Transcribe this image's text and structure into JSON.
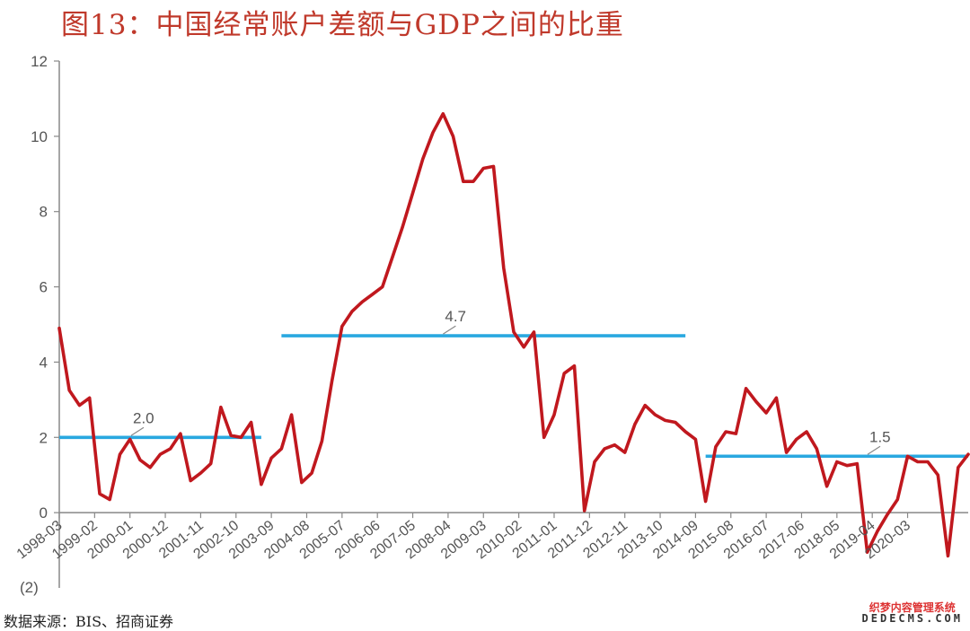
{
  "title": "图13：中国经常账户差额与GDP之间的比重",
  "source": "数据来源：BIS、招商证券",
  "watermark": {
    "cn": "织梦内容管理系统",
    "en": "DEDECMS.COM"
  },
  "colors": {
    "series": "#c0181e",
    "average": "#29a8e0",
    "title": "#c0392b"
  },
  "chart_data": {
    "type": "line",
    "ylim": [
      -2,
      12
    ],
    "yticks": [
      0,
      2,
      4,
      6,
      8,
      10,
      12
    ],
    "ytick_labels": [
      "0",
      "2",
      "4",
      "6",
      "8",
      "10",
      "12"
    ],
    "bottom_label": "(2)",
    "xtick_labels": [
      "1998-03",
      "1999-02",
      "2000-01",
      "2000-12",
      "2001-11",
      "2002-10",
      "2003-09",
      "2004-08",
      "2005-07",
      "2006-06",
      "2007-05",
      "2008-04",
      "2009-03",
      "2010-02",
      "2011-01",
      "2011-12",
      "2012-11",
      "2013-10",
      "2014-09",
      "2015-08",
      "2016-07",
      "2017-06",
      "2018-05",
      "2019-04",
      "2020-03"
    ],
    "xlim": [
      0,
      90
    ],
    "series": [
      {
        "x": [
          0,
          1,
          2,
          3,
          4,
          5,
          6,
          7,
          8,
          9,
          10,
          11,
          12,
          13,
          14,
          15,
          16,
          17,
          18,
          19,
          20,
          21,
          22,
          23,
          24,
          25,
          26,
          27,
          28,
          29,
          30,
          31,
          32,
          33,
          34,
          35,
          36,
          37,
          38,
          39,
          40,
          41,
          42,
          43,
          44,
          45,
          46,
          47,
          48,
          49,
          50,
          51,
          52,
          53,
          54,
          55,
          56,
          57,
          58,
          59,
          60,
          61,
          62,
          63,
          64,
          65,
          66,
          67,
          68,
          69,
          70,
          71,
          72,
          73,
          74,
          75,
          76,
          77,
          78,
          79,
          80,
          81,
          82,
          83,
          84,
          85,
          86,
          87,
          88,
          89,
          90
        ],
        "values": [
          4.9,
          3.25,
          2.85,
          3.05,
          0.5,
          0.35,
          1.55,
          1.95,
          1.4,
          1.2,
          1.55,
          1.7,
          2.1,
          0.85,
          1.05,
          1.3,
          2.8,
          2.05,
          2.0,
          2.4,
          0.75,
          1.45,
          1.7,
          2.6,
          0.8,
          1.05,
          1.9,
          3.5,
          4.95,
          5.35,
          5.6,
          5.8,
          6.0,
          6.8,
          7.6,
          8.5,
          9.4,
          10.1,
          10.6,
          10.0,
          8.8,
          8.8,
          9.15,
          9.2,
          6.5,
          4.8,
          4.4,
          4.8,
          2.0,
          2.6,
          3.7,
          3.9,
          0.05,
          1.35,
          1.7,
          1.8,
          1.6,
          2.35,
          2.85,
          2.6,
          2.45,
          2.4,
          2.15,
          1.95,
          0.3,
          1.75,
          2.15,
          2.1,
          3.3,
          2.95,
          2.65,
          3.05,
          1.6,
          1.95,
          2.15,
          1.7,
          0.7,
          1.35,
          1.25,
          1.3,
          -1.05,
          -0.5,
          -0.05,
          0.35,
          1.5,
          1.35,
          1.35,
          1.0,
          -1.15,
          1.2,
          1.55
        ]
      }
    ],
    "averages": [
      {
        "label": "2.0",
        "value": 2.0,
        "x_from": 0,
        "x_to": 20
      },
      {
        "label": "4.7",
        "value": 4.7,
        "x_from": 22,
        "x_to": 62
      },
      {
        "label": "1.5",
        "value": 1.5,
        "x_from": 64,
        "x_to": 90
      }
    ],
    "grid": false,
    "legend": "none"
  }
}
